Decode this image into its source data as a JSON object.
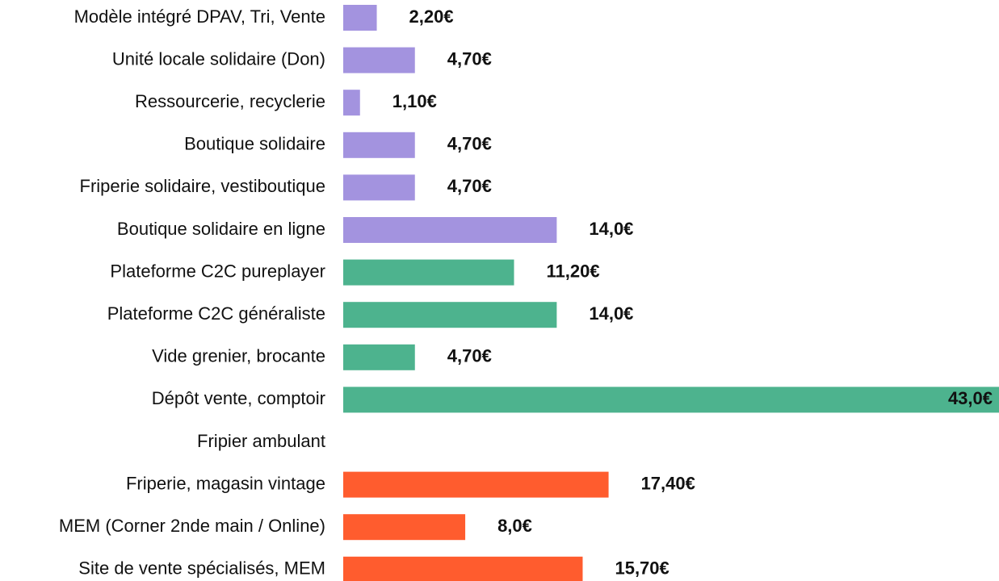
{
  "chart_data": {
    "type": "bar",
    "orientation": "horizontal",
    "categories": [
      "Modèle intégré DPAV, Tri, Vente",
      "Unité locale solidaire (Don)",
      "Ressourcerie, recyclerie",
      "Boutique solidaire",
      "Friperie solidaire, vestiboutique",
      "Boutique solidaire en ligne",
      "Plateforme C2C pureplayer",
      "Plateforme C2C généraliste",
      "Vide grenier, brocante",
      "Dépôt vente, comptoir",
      "Fripier ambulant",
      "Friperie, magasin vintage",
      "MEM (Corner 2nde main / Online)",
      "Site de vente spécialisés, MEM"
    ],
    "values": [
      2.2,
      4.7,
      1.1,
      4.7,
      4.7,
      14.0,
      11.2,
      14.0,
      4.7,
      43.0,
      null,
      17.4,
      8.0,
      15.7
    ],
    "value_labels": [
      "2,20€",
      "4,70€",
      "1,10€",
      "4,70€",
      "4,70€",
      "14,0€",
      "11,20€",
      "14,0€",
      "4,70€",
      "43,0€",
      null,
      "17,40€",
      "8,0€",
      "15,70€"
    ],
    "colors": [
      "#a393df",
      "#a393df",
      "#a393df",
      "#a393df",
      "#a393df",
      "#a393df",
      "#4db38e",
      "#4db38e",
      "#4db38e",
      "#4db38e",
      null,
      "#ff5c2e",
      "#ff5c2e",
      "#ff5c2e"
    ]
  }
}
